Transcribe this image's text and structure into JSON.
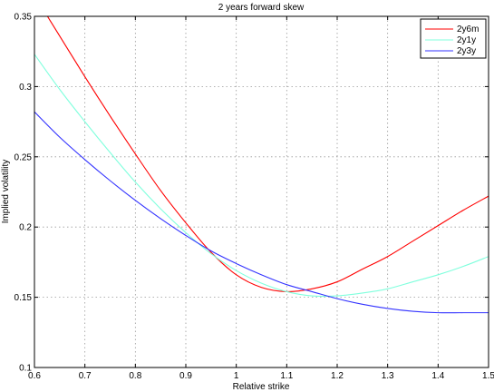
{
  "chart_data": {
    "type": "line",
    "title": "2 years forward skew",
    "xlabel": "Relative strike",
    "ylabel": "Implied volatility",
    "xlim": [
      0.6,
      1.5
    ],
    "ylim": [
      0.1,
      0.35
    ],
    "xticks": [
      0.6,
      0.7,
      0.8,
      0.9,
      1.0,
      1.1,
      1.2,
      1.3,
      1.4,
      1.5
    ],
    "xtick_labels": [
      "0.6",
      "0.7",
      "0.8",
      "0.9",
      "1",
      "1.1",
      "1.2",
      "1.3",
      "1.4",
      "1.5"
    ],
    "yticks": [
      0.1,
      0.15,
      0.2,
      0.25,
      0.3,
      0.35
    ],
    "ytick_labels": [
      "0.1",
      "0.15",
      "0.2",
      "0.25",
      "0.3",
      "0.35"
    ],
    "grid": true,
    "legend_position": "top-right",
    "x": [
      0.6,
      0.65,
      0.7,
      0.75,
      0.8,
      0.85,
      0.9,
      0.95,
      1.0,
      1.05,
      1.1,
      1.15,
      1.2,
      1.25,
      1.3,
      1.35,
      1.4,
      1.45,
      1.5
    ],
    "series": [
      {
        "name": "2y6m",
        "color": "#ff0000",
        "values": [
          0.365,
          0.336,
          0.307,
          0.279,
          0.252,
          0.226,
          0.203,
          0.182,
          0.166,
          0.157,
          0.154,
          0.156,
          0.161,
          0.17,
          0.179,
          0.19,
          0.201,
          0.212,
          0.222
        ]
      },
      {
        "name": "2y1y",
        "color": "#80ffdd",
        "values": [
          0.323,
          0.298,
          0.275,
          0.253,
          0.232,
          0.213,
          0.196,
          0.181,
          0.169,
          0.16,
          0.154,
          0.151,
          0.151,
          0.153,
          0.156,
          0.161,
          0.166,
          0.172,
          0.179
        ]
      },
      {
        "name": "2y3y",
        "color": "#3333ff",
        "values": [
          0.282,
          0.264,
          0.248,
          0.233,
          0.219,
          0.206,
          0.194,
          0.183,
          0.174,
          0.166,
          0.159,
          0.154,
          0.149,
          0.145,
          0.142,
          0.14,
          0.139,
          0.139,
          0.139
        ]
      }
    ]
  }
}
